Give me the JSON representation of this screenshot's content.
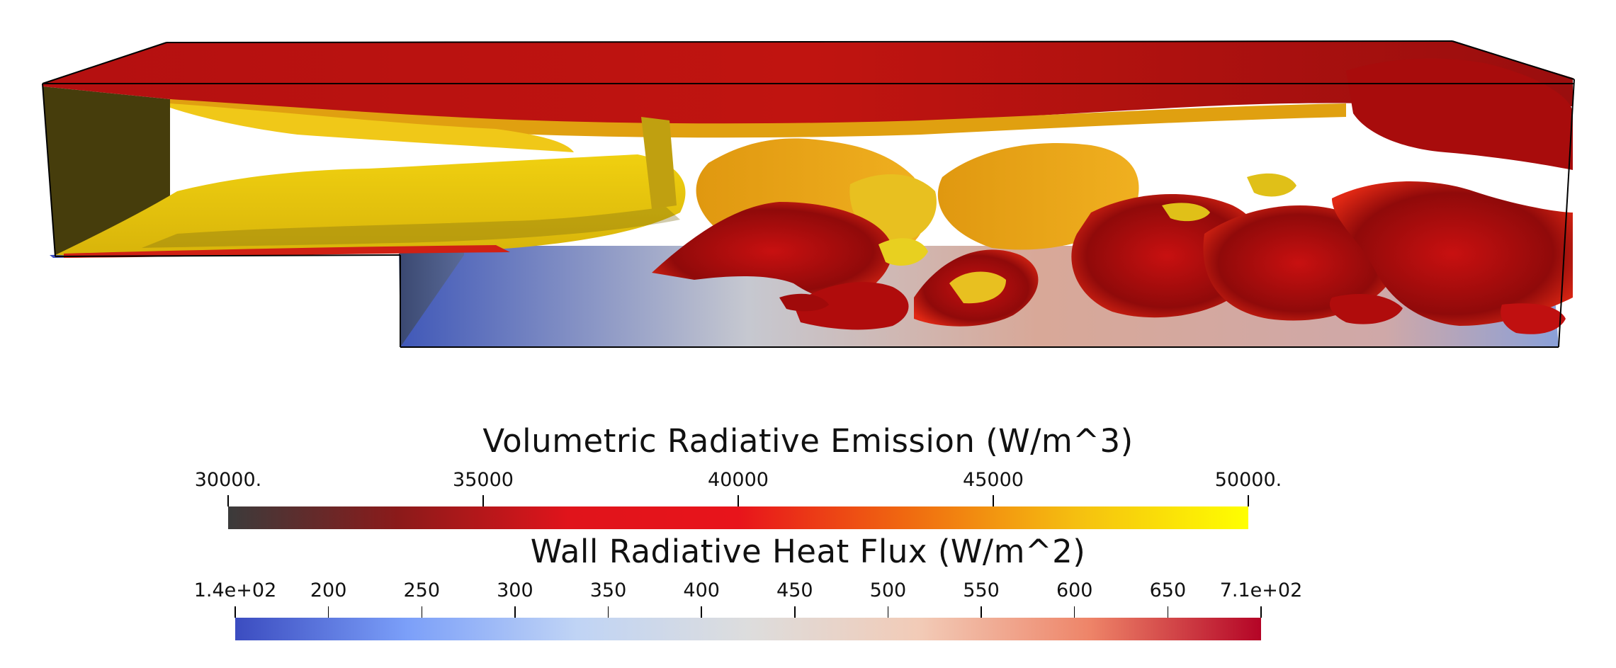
{
  "scene": {
    "description_icon": "3d-render-icon",
    "colors": {
      "box_edge": "#000000",
      "inlet_wall": "#463d0c",
      "emission_low": "#8b0a0a",
      "emission_mid": "#e01e14",
      "emission_high": "#f0c414"
    }
  },
  "emission_bar": {
    "title": "Volumetric Radiative Emission (W/m^3)",
    "ticks": [
      "30000.",
      "35000",
      "40000",
      "45000",
      "50000."
    ],
    "range": [
      30000,
      50000
    ],
    "colors": [
      "#3b3b3b",
      "#8b1a1a",
      "#e0141b",
      "#e8141b",
      "#f06a10",
      "#f5c010",
      "#ffff00"
    ]
  },
  "flux_bar": {
    "title": "Wall Radiative Heat Flux (W/m^2)",
    "ticks": [
      "1.4e+02",
      "200",
      "250",
      "300",
      "350",
      "400",
      "450",
      "500",
      "550",
      "600",
      "650",
      "7.1e+02"
    ],
    "range": [
      140,
      710
    ],
    "colors": [
      "#3b4cc0",
      "#7b9ff9",
      "#c0d4f5",
      "#dddddd",
      "#f2cbb7",
      "#ee8468",
      "#b40426"
    ]
  }
}
